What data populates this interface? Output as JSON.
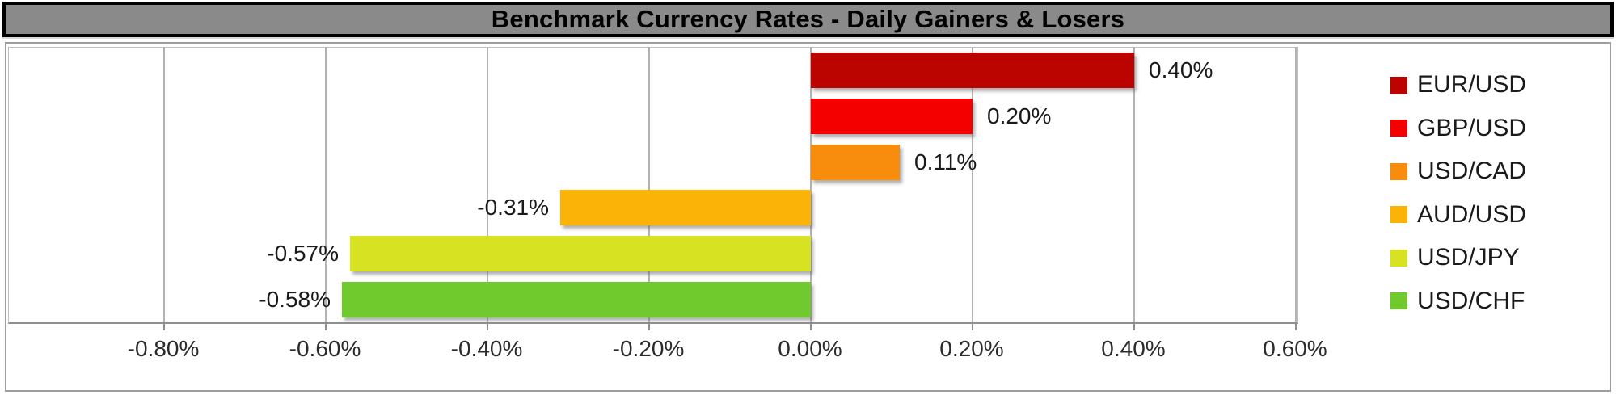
{
  "title": "Benchmark Currency Rates - Daily Gainers & Losers",
  "styles": {
    "title_bg": "#8a8a8a",
    "title_text_color": "#000000",
    "gridline_color": "#b3b3b3",
    "axis_color": "#8f8f8f"
  },
  "chart_data": {
    "type": "bar",
    "orientation": "horizontal",
    "title": "Benchmark Currency Rates - Daily Gainers & Losers",
    "xlabel": "",
    "ylabel": "",
    "categories": [
      "EUR/USD",
      "GBP/USD",
      "USD/CAD",
      "AUD/USD",
      "USD/JPY",
      "USD/CHF"
    ],
    "values": [
      0.4,
      0.2,
      0.11,
      -0.31,
      -0.57,
      -0.58
    ],
    "data_labels": [
      "0.40%",
      "0.20%",
      "0.11%",
      "-0.31%",
      "-0.57%",
      "-0.58%"
    ],
    "bar_colors": [
      "#bb0300",
      "#f50000",
      "#f88c0c",
      "#fab306",
      "#d7e322",
      "#70c92d"
    ],
    "x_ticks": [
      "-0.80%",
      "-0.60%",
      "-0.40%",
      "-0.20%",
      "0.00%",
      "0.20%",
      "0.40%",
      "0.60%"
    ],
    "x_tick_values": [
      -0.8,
      -0.6,
      -0.4,
      -0.2,
      0.0,
      0.2,
      0.4,
      0.6
    ],
    "xlim": [
      -0.99,
      0.6
    ],
    "grid": true,
    "data_label_position": "outside-end",
    "legend_position": "right",
    "legend": [
      {
        "label": "EUR/USD",
        "color": "#bb0300"
      },
      {
        "label": "GBP/USD",
        "color": "#f50000"
      },
      {
        "label": "USD/CAD",
        "color": "#f88c0c"
      },
      {
        "label": "AUD/USD",
        "color": "#fab306"
      },
      {
        "label": "USD/JPY",
        "color": "#d7e322"
      },
      {
        "label": "USD/CHF",
        "color": "#70c92d"
      }
    ]
  }
}
